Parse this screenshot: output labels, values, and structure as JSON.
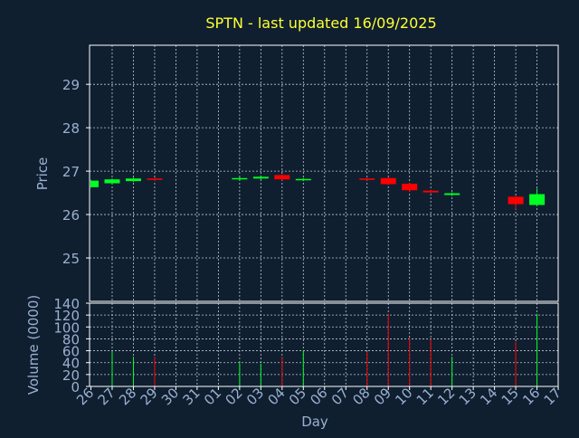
{
  "colors": {
    "background": "#0f1f30",
    "text": "#9bb0d0",
    "title": "#ffff33",
    "grid": "#c0c8d4",
    "axis": "#ffffff",
    "up": "#00ff22",
    "down": "#ff0000"
  },
  "chart_data": {
    "type": "candlestick",
    "title": "SPTN - last updated 16/09/2025",
    "xlabel": "Day",
    "price_panel": {
      "ylabel": "Price",
      "ylim": [
        24.0,
        29.9
      ],
      "yticks": [
        25,
        26,
        27,
        28,
        29
      ]
    },
    "volume_panel": {
      "ylabel": "Volume (0000)",
      "ylim": [
        0,
        140
      ],
      "yticks": [
        0,
        20,
        40,
        60,
        80,
        100,
        120,
        140
      ]
    },
    "x_tick_labels": [
      "26",
      "27",
      "28",
      "29",
      "30",
      "31",
      "01",
      "02",
      "03",
      "04",
      "05",
      "06",
      "07",
      "08",
      "09",
      "10",
      "11",
      "12",
      "13",
      "14",
      "15",
      "16",
      "17"
    ],
    "grid": true,
    "candles": [
      {
        "day": "26",
        "open": 26.63,
        "close": 26.78,
        "high": 26.8,
        "low": 26.62,
        "volume": 0
      },
      {
        "day": "27",
        "open": 26.72,
        "close": 26.81,
        "high": 26.83,
        "low": 26.7,
        "volume": 60
      },
      {
        "day": "28",
        "open": 26.77,
        "close": 26.83,
        "high": 26.85,
        "low": 26.75,
        "volume": 50
      },
      {
        "day": "29",
        "open": 26.83,
        "close": 26.8,
        "high": 26.86,
        "low": 26.77,
        "volume": 50
      },
      {
        "day": "02",
        "open": 26.81,
        "close": 26.84,
        "high": 26.87,
        "low": 26.78,
        "volume": 42
      },
      {
        "day": "03",
        "open": 26.83,
        "close": 26.87,
        "high": 26.9,
        "low": 26.8,
        "volume": 38
      },
      {
        "day": "04",
        "open": 26.91,
        "close": 26.81,
        "high": 26.93,
        "low": 26.79,
        "volume": 50
      },
      {
        "day": "05",
        "open": 26.79,
        "close": 26.82,
        "high": 26.84,
        "low": 26.77,
        "volume": 60
      },
      {
        "day": "08",
        "open": 26.83,
        "close": 26.8,
        "high": 26.85,
        "low": 26.78,
        "volume": 58
      },
      {
        "day": "09",
        "open": 26.84,
        "close": 26.7,
        "high": 26.86,
        "low": 26.68,
        "volume": 122
      },
      {
        "day": "10",
        "open": 26.71,
        "close": 26.56,
        "high": 26.73,
        "low": 26.52,
        "volume": 82
      },
      {
        "day": "11",
        "open": 26.55,
        "close": 26.51,
        "high": 26.57,
        "low": 26.49,
        "volume": 80
      },
      {
        "day": "12",
        "open": 26.45,
        "close": 26.49,
        "high": 26.51,
        "low": 26.43,
        "volume": 50
      },
      {
        "day": "15",
        "open": 26.41,
        "close": 26.24,
        "high": 26.43,
        "low": 26.12,
        "volume": 75
      },
      {
        "day": "16",
        "open": 26.22,
        "close": 26.47,
        "high": 26.6,
        "low": 26.2,
        "volume": 122
      }
    ]
  }
}
